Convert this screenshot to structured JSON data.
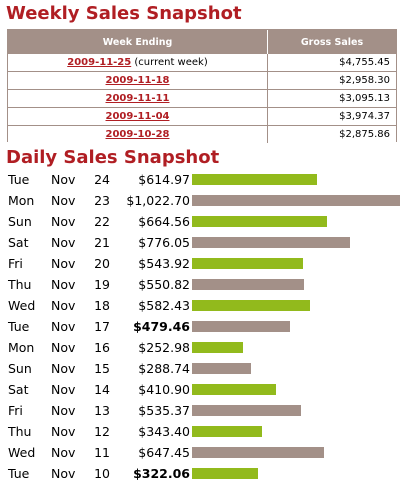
{
  "weekly": {
    "title": "Weekly Sales Snapshot",
    "headers": {
      "week_ending": "Week Ending",
      "gross_sales": "Gross Sales"
    },
    "rows": [
      {
        "week": "2009-11-25",
        "note": "(current week)",
        "sales": "$4,755.45"
      },
      {
        "week": "2009-11-18",
        "note": "",
        "sales": "$2,958.30"
      },
      {
        "week": "2009-11-11",
        "note": "",
        "sales": "$3,095.13"
      },
      {
        "week": "2009-11-04",
        "note": "",
        "sales": "$3,974.37"
      },
      {
        "week": "2009-10-28",
        "note": "",
        "sales": "$2,875.86"
      }
    ]
  },
  "daily": {
    "title": "Daily Sales Snapshot",
    "bar_max_value": 1022.7,
    "colors": {
      "weekday": "#92ba1c",
      "weekend": "#a39088"
    },
    "rows": [
      {
        "dow": "Tue",
        "month": "Nov",
        "day": "24",
        "amount": "$614.97",
        "value": 614.97,
        "color": "green",
        "bold": false
      },
      {
        "dow": "Mon",
        "month": "Nov",
        "day": "23",
        "amount": "$1,022.70",
        "value": 1022.7,
        "color": "gray",
        "bold": false
      },
      {
        "dow": "Sun",
        "month": "Nov",
        "day": "22",
        "amount": "$664.56",
        "value": 664.56,
        "color": "green",
        "bold": false
      },
      {
        "dow": "Sat",
        "month": "Nov",
        "day": "21",
        "amount": "$776.05",
        "value": 776.05,
        "color": "gray",
        "bold": false
      },
      {
        "dow": "Fri",
        "month": "Nov",
        "day": "20",
        "amount": "$543.92",
        "value": 543.92,
        "color": "green",
        "bold": false
      },
      {
        "dow": "Thu",
        "month": "Nov",
        "day": "19",
        "amount": "$550.82",
        "value": 550.82,
        "color": "gray",
        "bold": false
      },
      {
        "dow": "Wed",
        "month": "Nov",
        "day": "18",
        "amount": "$582.43",
        "value": 582.43,
        "color": "green",
        "bold": false
      },
      {
        "dow": "Tue",
        "month": "Nov",
        "day": "17",
        "amount": "$479.46",
        "value": 479.46,
        "color": "gray",
        "bold": true
      },
      {
        "dow": "Mon",
        "month": "Nov",
        "day": "16",
        "amount": "$252.98",
        "value": 252.98,
        "color": "green",
        "bold": false
      },
      {
        "dow": "Sun",
        "month": "Nov",
        "day": "15",
        "amount": "$288.74",
        "value": 288.74,
        "color": "gray",
        "bold": false
      },
      {
        "dow": "Sat",
        "month": "Nov",
        "day": "14",
        "amount": "$410.90",
        "value": 410.9,
        "color": "green",
        "bold": false
      },
      {
        "dow": "Fri",
        "month": "Nov",
        "day": "13",
        "amount": "$535.37",
        "value": 535.37,
        "color": "gray",
        "bold": false
      },
      {
        "dow": "Thu",
        "month": "Nov",
        "day": "12",
        "amount": "$343.40",
        "value": 343.4,
        "color": "green",
        "bold": false
      },
      {
        "dow": "Wed",
        "month": "Nov",
        "day": "11",
        "amount": "$647.45",
        "value": 647.45,
        "color": "gray",
        "bold": false
      },
      {
        "dow": "Tue",
        "month": "Nov",
        "day": "10",
        "amount": "$322.06",
        "value": 322.06,
        "color": "green",
        "bold": true
      }
    ]
  }
}
